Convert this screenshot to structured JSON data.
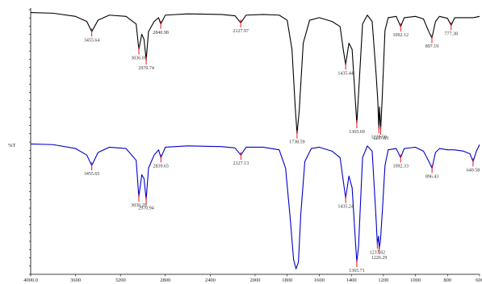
{
  "chart_data": {
    "type": "line",
    "title": "",
    "xlabel": "",
    "ylabel": "%T",
    "xlim": [
      4000,
      600
    ],
    "x_ticks": [
      "4000.0",
      "3600",
      "3200",
      "2800",
      "2400",
      "2000",
      "1800",
      "1600",
      "1400",
      "1200",
      "1000",
      "800",
      "600"
    ],
    "grid": false,
    "legend": "none",
    "series": [
      {
        "color": "#000000",
        "points": [
          [
            4000,
            99
          ],
          [
            3800,
            98.5
          ],
          [
            3600,
            96
          ],
          [
            3500,
            92
          ],
          [
            3455.64,
            84
          ],
          [
            3400,
            93
          ],
          [
            3300,
            97
          ],
          [
            3150,
            96
          ],
          [
            3060,
            90
          ],
          [
            3036.05,
            70
          ],
          [
            3010,
            82
          ],
          [
            2990,
            78
          ],
          [
            2970.74,
            62
          ],
          [
            2950,
            84
          ],
          [
            2900,
            92
          ],
          [
            2860,
            95
          ],
          [
            2840.98,
            90
          ],
          [
            2800,
            97
          ],
          [
            2600,
            98
          ],
          [
            2300,
            97.5
          ],
          [
            2180,
            96.5
          ],
          [
            2127.97,
            91
          ],
          [
            2080,
            97
          ],
          [
            1950,
            97.5
          ],
          [
            1850,
            97
          ],
          [
            1800,
            93
          ],
          [
            1770,
            70
          ],
          [
            1750,
            25
          ],
          [
            1738.59,
            4
          ],
          [
            1725,
            22
          ],
          [
            1700,
            75
          ],
          [
            1660,
            93
          ],
          [
            1600,
            95
          ],
          [
            1520,
            92
          ],
          [
            1470,
            88
          ],
          [
            1450,
            70
          ],
          [
            1435.44,
            58
          ],
          [
            1415,
            75
          ],
          [
            1395,
            70
          ],
          [
            1375,
            30
          ],
          [
            1365.69,
            12
          ],
          [
            1355,
            35
          ],
          [
            1330,
            90
          ],
          [
            1300,
            97
          ],
          [
            1270,
            92
          ],
          [
            1245,
            50
          ],
          [
            1235,
            30
          ],
          [
            1228.5,
            8
          ],
          [
            1224,
            25
          ],
          [
            1217.03,
            7
          ],
          [
            1208,
            30
          ],
          [
            1190,
            85
          ],
          [
            1170,
            95
          ],
          [
            1120,
            96
          ],
          [
            1092.12,
            88
          ],
          [
            1070,
            95
          ],
          [
            1000,
            96
          ],
          [
            950,
            94
          ],
          [
            920,
            85
          ],
          [
            897.19,
            79
          ],
          [
            875,
            92
          ],
          [
            850,
            96
          ],
          [
            800,
            94.5
          ],
          [
            777.38,
            89
          ],
          [
            755,
            95
          ],
          [
            700,
            95
          ],
          [
            640,
            95
          ],
          [
            600,
            96
          ]
        ]
      },
      {
        "color": "#0000cc",
        "points": [
          [
            4000,
            98.5
          ],
          [
            3800,
            98
          ],
          [
            3600,
            95
          ],
          [
            3500,
            90
          ],
          [
            3455.65,
            82
          ],
          [
            3400,
            92
          ],
          [
            3300,
            96
          ],
          [
            3150,
            95
          ],
          [
            3060,
            86
          ],
          [
            3036.29,
            58
          ],
          [
            3010,
            75
          ],
          [
            2990,
            72
          ],
          [
            2970.94,
            56
          ],
          [
            2950,
            80
          ],
          [
            2900,
            90
          ],
          [
            2860,
            94
          ],
          [
            2839.65,
            88
          ],
          [
            2800,
            96
          ],
          [
            2600,
            97
          ],
          [
            2300,
            96.5
          ],
          [
            2180,
            95.5
          ],
          [
            2127.13,
            90
          ],
          [
            2080,
            96
          ],
          [
            1950,
            96
          ],
          [
            1850,
            94
          ],
          [
            1810,
            80
          ],
          [
            1780,
            40
          ],
          [
            1760,
            10
          ],
          [
            1745,
            3
          ],
          [
            1730,
            8
          ],
          [
            1715,
            45
          ],
          [
            1690,
            85
          ],
          [
            1650,
            95
          ],
          [
            1600,
            96
          ],
          [
            1520,
            93
          ],
          [
            1470,
            88
          ],
          [
            1450,
            70
          ],
          [
            1435.24,
            57
          ],
          [
            1415,
            74
          ],
          [
            1395,
            65
          ],
          [
            1375,
            25
          ],
          [
            1365.71,
            8
          ],
          [
            1355,
            20
          ],
          [
            1330,
            88
          ],
          [
            1300,
            97
          ],
          [
            1270,
            93
          ],
          [
            1245,
            40
          ],
          [
            1237.82,
            22
          ],
          [
            1230,
            28
          ],
          [
            1226.29,
            18
          ],
          [
            1218,
            25
          ],
          [
            1205,
            50
          ],
          [
            1190,
            82
          ],
          [
            1170,
            94
          ],
          [
            1120,
            95
          ],
          [
            1092.33,
            88
          ],
          [
            1070,
            95
          ],
          [
            1000,
            96
          ],
          [
            950,
            93
          ],
          [
            920,
            86
          ],
          [
            896.43,
            80
          ],
          [
            875,
            92
          ],
          [
            850,
            95
          ],
          [
            800,
            94
          ],
          [
            760,
            94
          ],
          [
            700,
            93
          ],
          [
            660,
            91
          ],
          [
            640.58,
            85
          ],
          [
            620,
            93
          ],
          [
            600,
            98
          ]
        ]
      }
    ],
    "peak_labels": [
      {
        "series": 0,
        "x": 3455.64,
        "label": "3455.64"
      },
      {
        "series": 0,
        "x": 3036.05,
        "label": "3036.05"
      },
      {
        "series": 0,
        "x": 2970.74,
        "label": "2970.74"
      },
      {
        "series": 0,
        "x": 2840.98,
        "label": "2840.98"
      },
      {
        "series": 0,
        "x": 2127.97,
        "label": "2127.97"
      },
      {
        "series": 0,
        "x": 1738.59,
        "label": "1738.59"
      },
      {
        "series": 0,
        "x": 1435.44,
        "label": "1435.44"
      },
      {
        "series": 0,
        "x": 1365.69,
        "label": "1365.69"
      },
      {
        "series": 0,
        "x": 1228.5,
        "label": "1228.50"
      },
      {
        "series": 0,
        "x": 1217.03,
        "label": "1217.03"
      },
      {
        "series": 0,
        "x": 1092.12,
        "label": "1092.12"
      },
      {
        "series": 0,
        "x": 897.19,
        "label": "897.19"
      },
      {
        "series": 0,
        "x": 777.38,
        "label": "777.38"
      },
      {
        "series": 1,
        "x": 3455.65,
        "label": "3455.65"
      },
      {
        "series": 1,
        "x": 3036.29,
        "label": "3036.29"
      },
      {
        "series": 1,
        "x": 2970.94,
        "label": "2970.94"
      },
      {
        "series": 1,
        "x": 2839.65,
        "label": "2839.65"
      },
      {
        "series": 1,
        "x": 2127.13,
        "label": "2127.13"
      },
      {
        "series": 1,
        "x": 1435.24,
        "label": "1435.24"
      },
      {
        "series": 1,
        "x": 1365.71,
        "label": "1365.71"
      },
      {
        "series": 1,
        "x": 1237.82,
        "label": "1237.82"
      },
      {
        "series": 1,
        "x": 1226.29,
        "label": "1226.29"
      },
      {
        "series": 1,
        "x": 1092.33,
        "label": "1092.33"
      },
      {
        "series": 1,
        "x": 896.43,
        "label": "896.43"
      },
      {
        "series": 1,
        "x": 640.58,
        "label": "640.58"
      }
    ],
    "label_color": "#e0141e"
  }
}
